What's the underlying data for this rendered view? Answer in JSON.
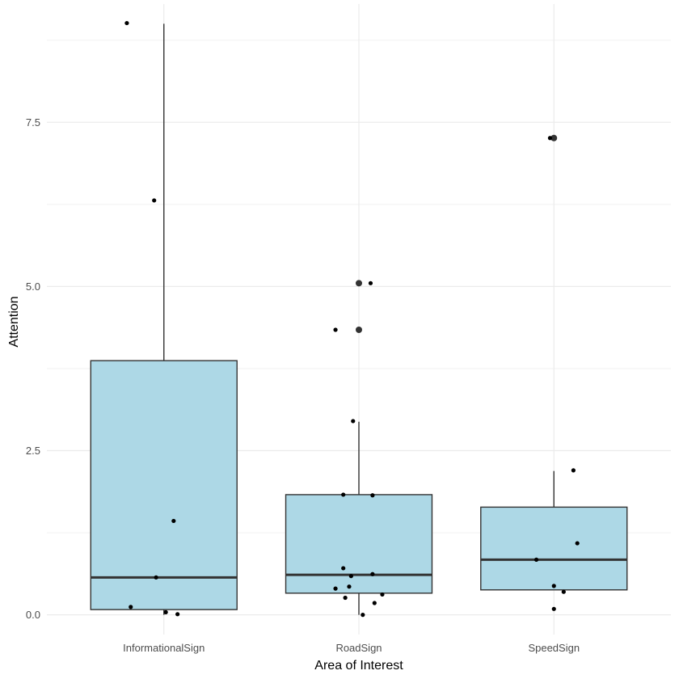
{
  "chart_data": {
    "type": "boxplot",
    "title": "",
    "xlabel": "Area of Interest",
    "ylabel": "Attention",
    "ylim": [
      -0.3,
      9.3
    ],
    "yticks": [
      0.0,
      2.5,
      5.0,
      7.5
    ],
    "ytick_labels": [
      "0.0",
      "2.5",
      "5.0",
      "7.5"
    ],
    "categories": [
      "InformationalSign",
      "RoadSign",
      "SpeedSign"
    ],
    "grid": true,
    "box_fill": "#add8e6",
    "box_stroke": "#333333",
    "boxes": [
      {
        "category": "InformationalSign",
        "whisker_low": 0.0,
        "q1": 0.08,
        "median": 0.57,
        "q3": 3.87,
        "whisker_high": 9.0,
        "outliers": []
      },
      {
        "category": "RoadSign",
        "whisker_low": 0.0,
        "q1": 0.33,
        "median": 0.61,
        "q3": 1.83,
        "whisker_high": 2.94,
        "outliers": [
          4.34,
          5.05
        ]
      },
      {
        "category": "SpeedSign",
        "whisker_low": 0.38,
        "q1": 0.38,
        "median": 0.84,
        "q3": 1.64,
        "whisker_high": 2.19,
        "outliers": [
          7.26
        ]
      }
    ],
    "points": [
      {
        "category": "InformationalSign",
        "x": 0.81,
        "y": 9.01
      },
      {
        "category": "InformationalSign",
        "x": 0.95,
        "y": 6.31
      },
      {
        "category": "InformationalSign",
        "x": 1.05,
        "y": 1.43
      },
      {
        "category": "InformationalSign",
        "x": 0.96,
        "y": 0.57
      },
      {
        "category": "InformationalSign",
        "x": 0.83,
        "y": 0.12
      },
      {
        "category": "InformationalSign",
        "x": 1.01,
        "y": 0.04
      },
      {
        "category": "InformationalSign",
        "x": 1.07,
        "y": 0.01
      },
      {
        "category": "RoadSign",
        "x": 2.06,
        "y": 5.05
      },
      {
        "category": "RoadSign",
        "x": 1.88,
        "y": 4.34
      },
      {
        "category": "RoadSign",
        "x": 1.97,
        "y": 2.95
      },
      {
        "category": "RoadSign",
        "x": 1.92,
        "y": 1.83
      },
      {
        "category": "RoadSign",
        "x": 2.07,
        "y": 1.82
      },
      {
        "category": "RoadSign",
        "x": 1.92,
        "y": 0.71
      },
      {
        "category": "RoadSign",
        "x": 2.07,
        "y": 0.62
      },
      {
        "category": "RoadSign",
        "x": 1.96,
        "y": 0.59
      },
      {
        "category": "RoadSign",
        "x": 1.95,
        "y": 0.43
      },
      {
        "category": "RoadSign",
        "x": 1.88,
        "y": 0.4
      },
      {
        "category": "RoadSign",
        "x": 2.12,
        "y": 0.31
      },
      {
        "category": "RoadSign",
        "x": 1.93,
        "y": 0.26
      },
      {
        "category": "RoadSign",
        "x": 2.08,
        "y": 0.18
      },
      {
        "category": "RoadSign",
        "x": 2.02,
        "y": 0.0
      },
      {
        "category": "SpeedSign",
        "x": 2.98,
        "y": 7.26
      },
      {
        "category": "SpeedSign",
        "x": 3.1,
        "y": 2.2
      },
      {
        "category": "SpeedSign",
        "x": 3.12,
        "y": 1.09
      },
      {
        "category": "SpeedSign",
        "x": 2.91,
        "y": 0.84
      },
      {
        "category": "SpeedSign",
        "x": 3.0,
        "y": 0.44
      },
      {
        "category": "SpeedSign",
        "x": 3.05,
        "y": 0.35
      },
      {
        "category": "SpeedSign",
        "x": 3.0,
        "y": 0.09
      }
    ]
  }
}
